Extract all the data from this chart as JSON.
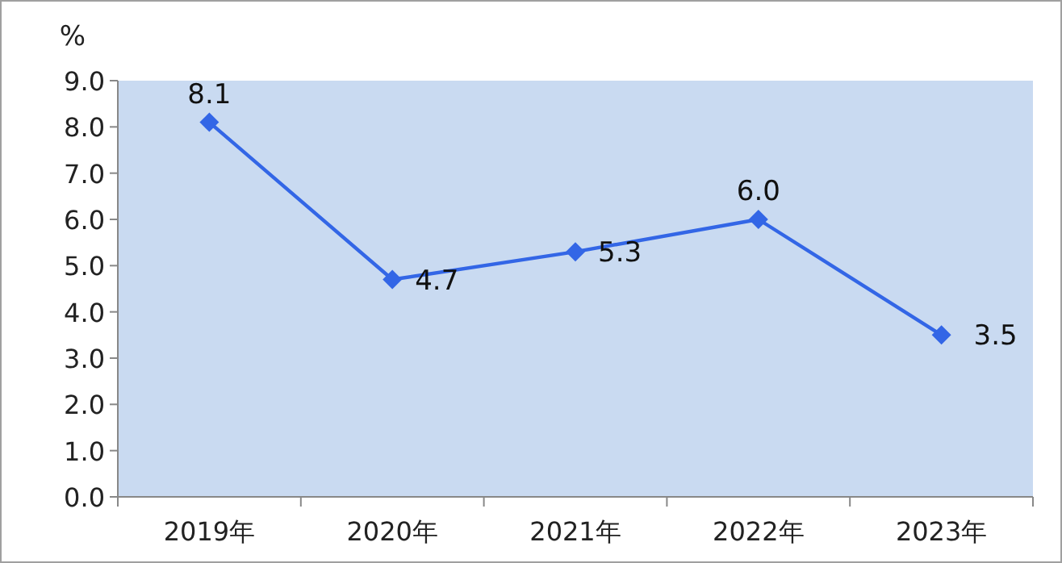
{
  "chart_data": {
    "type": "line",
    "ylabel": "%",
    "categories": [
      "2019年",
      "2020年",
      "2021年",
      "2022年",
      "2023年"
    ],
    "series": [
      {
        "color": "#3366e6",
        "values": [
          8.1,
          4.7,
          5.3,
          6.0,
          3.5
        ],
        "value_labels": [
          "8.1",
          "4.7",
          "5.3",
          "6.0",
          "3.5"
        ]
      }
    ],
    "ylim": [
      0,
      9
    ],
    "yticks": [
      {
        "value": 0,
        "label": "0.0"
      },
      {
        "value": 1,
        "label": "1.0"
      },
      {
        "value": 2,
        "label": "2.0"
      },
      {
        "value": 3,
        "label": "3.0"
      },
      {
        "value": 4,
        "label": "4.0"
      },
      {
        "value": 5,
        "label": "5.0"
      },
      {
        "value": 6,
        "label": "6.0"
      },
      {
        "value": 7,
        "label": "7.0"
      },
      {
        "value": 8,
        "label": "8.0"
      },
      {
        "value": 9,
        "label": "9.0"
      }
    ],
    "marker": "diamond",
    "grid": false
  }
}
